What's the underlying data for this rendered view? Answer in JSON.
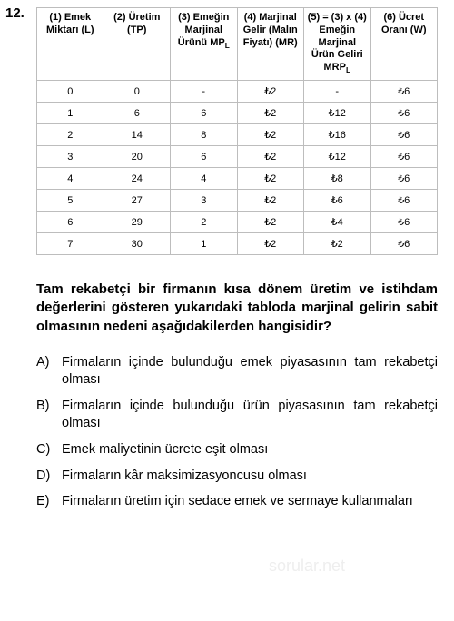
{
  "question_number": "12.",
  "table": {
    "headers": [
      "(1) Emek Miktarı (L)",
      "(2) Üretim (TP)",
      "(3) Emeğin Marjinal Ürünü MPL",
      "(4) Marjinal Gelir (Malın Fiyatı) (MR)",
      "(5) = (3) x (4) Emeğin Marjinal Ürün Geliri MRPL",
      "(6) Ücret Oranı (W)"
    ],
    "rows": [
      [
        "0",
        "0",
        "-",
        "₺2",
        "-",
        "₺6"
      ],
      [
        "1",
        "6",
        "6",
        "₺2",
        "₺12",
        "₺6"
      ],
      [
        "2",
        "14",
        "8",
        "₺2",
        "₺16",
        "₺6"
      ],
      [
        "3",
        "20",
        "6",
        "₺2",
        "₺12",
        "₺6"
      ],
      [
        "4",
        "24",
        "4",
        "₺2",
        "₺8",
        "₺6"
      ],
      [
        "5",
        "27",
        "3",
        "₺2",
        "₺6",
        "₺6"
      ],
      [
        "6",
        "29",
        "2",
        "₺2",
        "₺4",
        "₺6"
      ],
      [
        "7",
        "30",
        "1",
        "₺2",
        "₺2",
        "₺6"
      ]
    ],
    "border_color": "#bdbdbd",
    "header_font_size": 11,
    "cell_font_size": 11
  },
  "question_text": "Tam rekabetçi bir firmanın kısa dönem üretim ve istihdam değerlerini gösteren yukarıdaki tabloda marjinal gelirin sabit olmasının nedeni aşağıdakilerden hangisidir?",
  "options": {
    "A": "Firmaların içinde bulunduğu emek piyasasının tam rekabetçi olması",
    "B": "Firmaların içinde bulunduğu ürün piyasasının tam rekabetçi olması",
    "C": "Emek maliyetinin ücrete eşit olması",
    "D": "Firmaların kâr maksimizasyoncusu olması",
    "E": "Firmaların üretim için sedace emek ve sermaye kullanmaları"
  },
  "colors": {
    "text": "#000000",
    "background": "#ffffff",
    "border": "#bdbdbd",
    "watermark": "#eeeeee"
  },
  "watermark_text": "sorular.net"
}
